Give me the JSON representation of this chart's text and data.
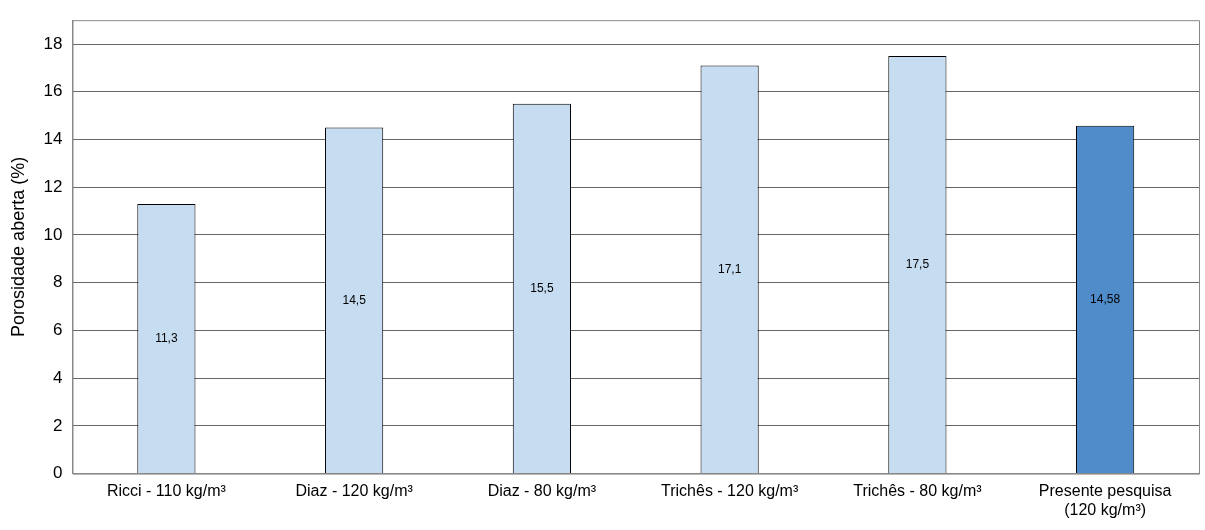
{
  "chart_data": {
    "type": "bar",
    "ylabel": "Porosidade aberta (%)",
    "categories": [
      "Ricci - 110 kg/m³",
      "Diaz - 120 kg/m³",
      "Diaz - 80 kg/m³",
      "Trichês - 120 kg/m³",
      "Trichês - 80 kg/m³",
      "Presente pesquisa\n(120 kg/m³)"
    ],
    "values": [
      11.3,
      14.5,
      15.5,
      17.1,
      17.5,
      14.58
    ],
    "value_labels": [
      "11,3",
      "14,5",
      "15,5",
      "17,1",
      "17,5",
      "14,58"
    ],
    "colors": [
      "#c6dcf0",
      "#c6dcf0",
      "#c6dcf0",
      "#c6dcf0",
      "#c6dcf0",
      "#4f8cc9"
    ],
    "ylim": [
      0,
      19
    ],
    "yticks": [
      0,
      2,
      4,
      6,
      8,
      10,
      12,
      14,
      16,
      18
    ],
    "grid": "y",
    "legend": false
  }
}
